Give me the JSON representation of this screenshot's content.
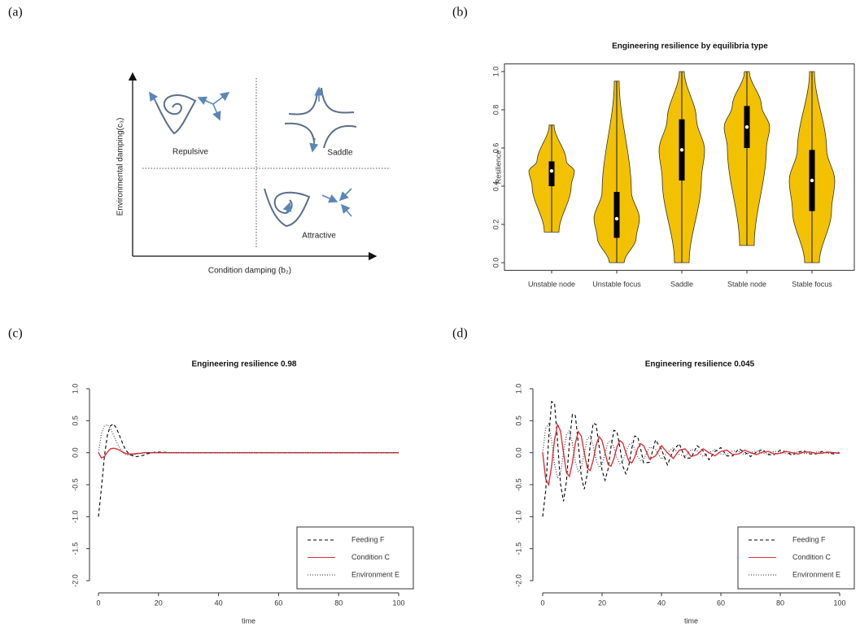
{
  "diagram": {
    "panel_label": "(a)",
    "y_label": "Environmental damping(c₃)",
    "x_label": "Condition damping (b₂)",
    "regions": [
      "Repulsive",
      "Saddle",
      "Attractive"
    ]
  },
  "chart_data": [
    {
      "type": "violin",
      "panel_label": "(b)",
      "title": "Engineering resilience by equilibria type",
      "y_label": "Resilience",
      "categories": [
        "Unstable node",
        "Unstable focus",
        "Saddle",
        "Stable node",
        "Stable focus"
      ],
      "min": [
        0.16,
        0.0,
        0.0,
        0.09,
        0.0
      ],
      "q1": [
        0.4,
        0.13,
        0.43,
        0.6,
        0.27
      ],
      "median": [
        0.48,
        0.23,
        0.59,
        0.71,
        0.43
      ],
      "q3": [
        0.53,
        0.37,
        0.75,
        0.82,
        0.59
      ],
      "max": [
        0.72,
        0.95,
        1.0,
        1.0,
        1.0
      ],
      "color": "#f2c200",
      "ylim": [
        -0.04,
        1.04
      ],
      "yticks": [
        {
          "value": 0,
          "label": "0.0"
        },
        {
          "value": 0.2,
          "label": "0.2"
        },
        {
          "value": 0.4,
          "label": "0.4"
        },
        {
          "value": 0.6,
          "label": "0.6"
        },
        {
          "value": 0.8,
          "label": "0.8"
        },
        {
          "value": 1,
          "label": "1.0"
        }
      ]
    },
    {
      "type": "line",
      "panel_label": "(c)",
      "title": "Engineering resilience 0.98",
      "x_label": "time",
      "legend": "bottom right",
      "x": [
        0,
        1,
        2,
        3,
        4,
        5,
        6,
        7,
        8,
        9,
        10,
        11,
        12,
        13,
        14,
        15,
        16,
        17,
        18,
        19,
        20,
        25,
        30,
        35,
        40,
        45,
        50,
        55,
        60,
        65,
        70,
        75,
        80,
        85,
        90,
        95,
        100
      ],
      "series": [
        {
          "name": "Feeding F",
          "color": "#000000",
          "dash": "dashed",
          "values": [
            -1,
            -0.55,
            -0.05,
            0.28,
            0.42,
            0.45,
            0.38,
            0.27,
            0.15,
            0.05,
            -0.01,
            -0.04,
            -0.06,
            -0.06,
            -0.05,
            -0.04,
            -0.02,
            -0.01,
            0,
            0.01,
            0.01,
            0,
            0,
            0,
            0,
            0,
            0,
            0,
            0,
            0,
            0,
            0,
            0,
            0,
            0,
            0,
            0
          ]
        },
        {
          "name": "Condition C",
          "color": "#e0303a",
          "dash": "solid",
          "values": [
            0,
            -0.08,
            -0.06,
            0.01,
            0.06,
            0.07,
            0.06,
            0.04,
            0.01,
            -0.01,
            -0.02,
            -0.02,
            -0.02,
            -0.01,
            -0.01,
            0,
            0,
            0,
            0,
            0,
            0,
            0,
            0,
            0,
            0,
            0,
            0,
            0,
            0,
            0,
            0,
            0,
            0,
            0,
            0,
            0,
            0
          ]
        },
        {
          "name": "Environment E",
          "color": "#333333",
          "dash": "dotted",
          "values": [
            0,
            0.3,
            0.42,
            0.44,
            0.38,
            0.28,
            0.17,
            0.08,
            0.01,
            -0.03,
            -0.04,
            -0.04,
            -0.03,
            -0.02,
            -0.01,
            0,
            0,
            0,
            0,
            0,
            0,
            0,
            0,
            0,
            0,
            0,
            0,
            0,
            0,
            0,
            0,
            0,
            0,
            0,
            0,
            0,
            0
          ]
        }
      ],
      "xlim": [
        0,
        100
      ],
      "xticks": [
        0,
        20,
        40,
        60,
        80,
        100
      ],
      "ylim": [
        -2,
        1
      ],
      "yticks": [
        {
          "value": 1,
          "label": "1.0"
        },
        {
          "value": 0.5,
          "label": "0.5"
        },
        {
          "value": 0,
          "label": "0.0"
        },
        {
          "value": -0.5,
          "label": "-0.5"
        },
        {
          "value": -1,
          "label": "-1.0"
        },
        {
          "value": -1.5,
          "label": "-1.5"
        },
        {
          "value": -2,
          "label": "-2.0"
        }
      ]
    },
    {
      "type": "line",
      "panel_label": "(d)",
      "title": "Engineering resilience 0.045",
      "x_label": "time",
      "legend": "bottom right",
      "x": [
        0,
        1,
        2,
        3,
        4,
        5,
        6,
        7,
        8,
        9,
        10,
        11,
        12,
        13,
        14,
        15,
        16,
        17,
        18,
        19,
        20,
        21,
        22,
        23,
        24,
        25,
        26,
        27,
        28,
        29,
        30,
        31,
        32,
        33,
        34,
        36,
        38,
        40,
        42,
        44,
        46,
        48,
        50,
        52,
        54,
        56,
        58,
        60,
        62,
        64,
        66,
        68,
        70,
        72,
        74,
        76,
        78,
        80,
        82,
        84,
        86,
        88,
        90,
        92,
        94,
        96,
        98,
        100
      ],
      "series": [
        {
          "name": "Feeding F",
          "color": "#000000",
          "dash": "dashed",
          "values": [
            -1,
            -0.6,
            0.21,
            0.8,
            0.77,
            0.18,
            -0.49,
            -0.76,
            -0.45,
            0.16,
            0.6,
            0.58,
            0.14,
            -0.37,
            -0.57,
            -0.34,
            0.12,
            0.46,
            0.44,
            0.1,
            -0.28,
            -0.43,
            -0.26,
            0.09,
            0.35,
            0.33,
            0.08,
            -0.21,
            -0.33,
            -0.2,
            0.07,
            0.26,
            0.25,
            0.06,
            -0.16,
            -0.15,
            0.2,
            0.05,
            -0.19,
            0.04,
            0.14,
            -0.09,
            -0.08,
            0.11,
            0.03,
            -0.11,
            0.02,
            0.08,
            -0.05,
            -0.05,
            0.06,
            0.01,
            -0.06,
            0.01,
            0.05,
            -0.03,
            -0.03,
            0.04,
            0.01,
            -0.04,
            0.01,
            0.03,
            -0.02,
            -0.02,
            0.02,
            0,
            -0.02,
            0
          ]
        },
        {
          "name": "Condition C",
          "color": "#e0303a",
          "dash": "solid",
          "values": [
            0,
            -0.41,
            -0.5,
            -0.21,
            0.2,
            0.44,
            0.34,
            0,
            -0.31,
            -0.37,
            -0.16,
            0.15,
            0.33,
            0.26,
            0,
            -0.24,
            -0.28,
            -0.12,
            0.12,
            0.25,
            0.19,
            0,
            -0.18,
            -0.21,
            -0.09,
            0.09,
            0.19,
            0.15,
            0,
            -0.13,
            -0.16,
            -0.07,
            0.07,
            0.14,
            0.11,
            -0.1,
            -0.05,
            0.11,
            0,
            -0.09,
            0.04,
            0.06,
            -0.06,
            -0.03,
            0.06,
            0,
            -0.05,
            0.02,
            0.04,
            -0.03,
            -0.02,
            0.04,
            0,
            -0.03,
            0.01,
            0.02,
            -0.02,
            -0.01,
            0.02,
            0,
            -0.02,
            0.01,
            0.01,
            -0.01,
            -0.01,
            0.01,
            0,
            -0.01
          ]
        },
        {
          "name": "Environment E",
          "color": "#333333",
          "dash": "dotted",
          "values": [
            0,
            0.38,
            0.45,
            0.19,
            -0.18,
            -0.4,
            -0.31,
            0,
            0.28,
            0.34,
            0.15,
            -0.14,
            -0.3,
            -0.23,
            0,
            0.21,
            0.26,
            0.11,
            -0.11,
            -0.23,
            -0.18,
            0,
            0.16,
            0.19,
            0.08,
            -0.08,
            -0.17,
            -0.13,
            0,
            0.12,
            0.15,
            0.06,
            -0.06,
            -0.13,
            -0.1,
            0.09,
            0.05,
            -0.1,
            0,
            0.08,
            -0.03,
            -0.06,
            0.05,
            0.03,
            -0.06,
            0,
            0.05,
            -0.02,
            -0.03,
            0.03,
            0.02,
            -0.03,
            0,
            0.03,
            -0.01,
            -0.02,
            0.02,
            0.01,
            -0.02,
            0,
            0.01,
            -0.01,
            -0.01,
            0.01,
            0.01,
            -0.01,
            0,
            0.01
          ]
        }
      ],
      "xlim": [
        0,
        100
      ],
      "xticks": [
        0,
        20,
        40,
        60,
        80,
        100
      ],
      "ylim": [
        -2,
        1
      ],
      "yticks": [
        {
          "value": 1,
          "label": "1.0"
        },
        {
          "value": 0.5,
          "label": "0.5"
        },
        {
          "value": 0,
          "label": "0.0"
        },
        {
          "value": -0.5,
          "label": "-0.5"
        },
        {
          "value": -1,
          "label": "-1.0"
        },
        {
          "value": -1.5,
          "label": "-1.5"
        },
        {
          "value": -2,
          "label": "-2.0"
        }
      ]
    }
  ]
}
